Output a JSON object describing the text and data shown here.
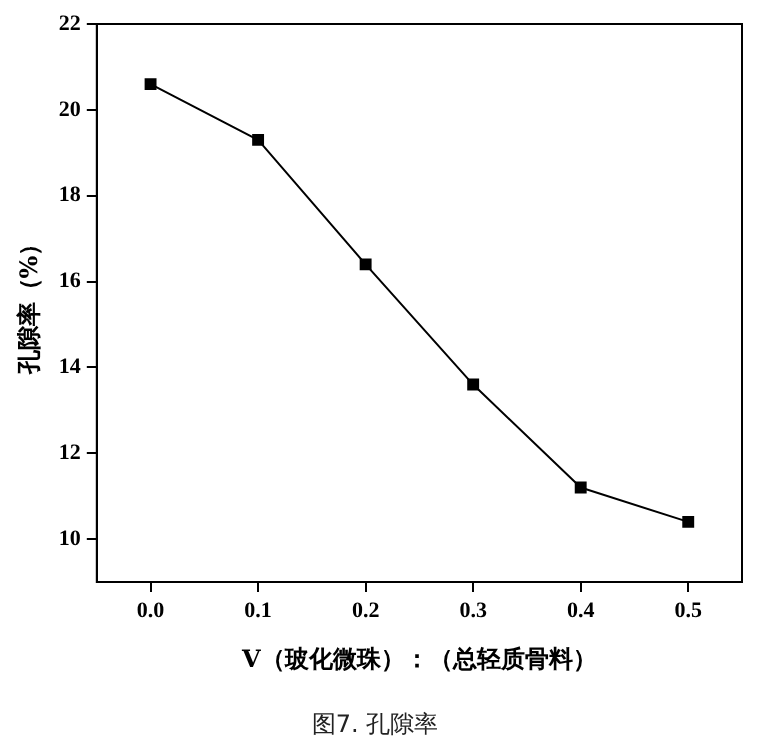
{
  "chart_data": {
    "type": "line",
    "title": "图7. 孔隙率",
    "xlabel": "V（玻化微珠）：（总轻质骨料）",
    "ylabel": "孔隙率（%）",
    "x": [
      0,
      0.1,
      0.2,
      0.3,
      0.4,
      0.5
    ],
    "series": [
      {
        "color": "#000000",
        "values": [
          20.6,
          19.3,
          16.4,
          13.6,
          11.2,
          10.4
        ]
      }
    ],
    "xlim": [
      -0.05,
      0.55
    ],
    "xticks": [
      {
        "value": 0,
        "label": "0.0"
      },
      {
        "value": 0.1,
        "label": "0.1"
      },
      {
        "value": 0.2,
        "label": "0.2"
      },
      {
        "value": 0.3,
        "label": "0.3"
      },
      {
        "value": 0.4,
        "label": "0.4"
      },
      {
        "value": 0.5,
        "label": "0.5"
      }
    ],
    "ylim": [
      9,
      22
    ],
    "yticks": [
      10,
      12,
      14,
      16,
      18,
      20,
      22
    ],
    "grid": false,
    "legend": false,
    "marker": "square",
    "line_style": "solid"
  }
}
